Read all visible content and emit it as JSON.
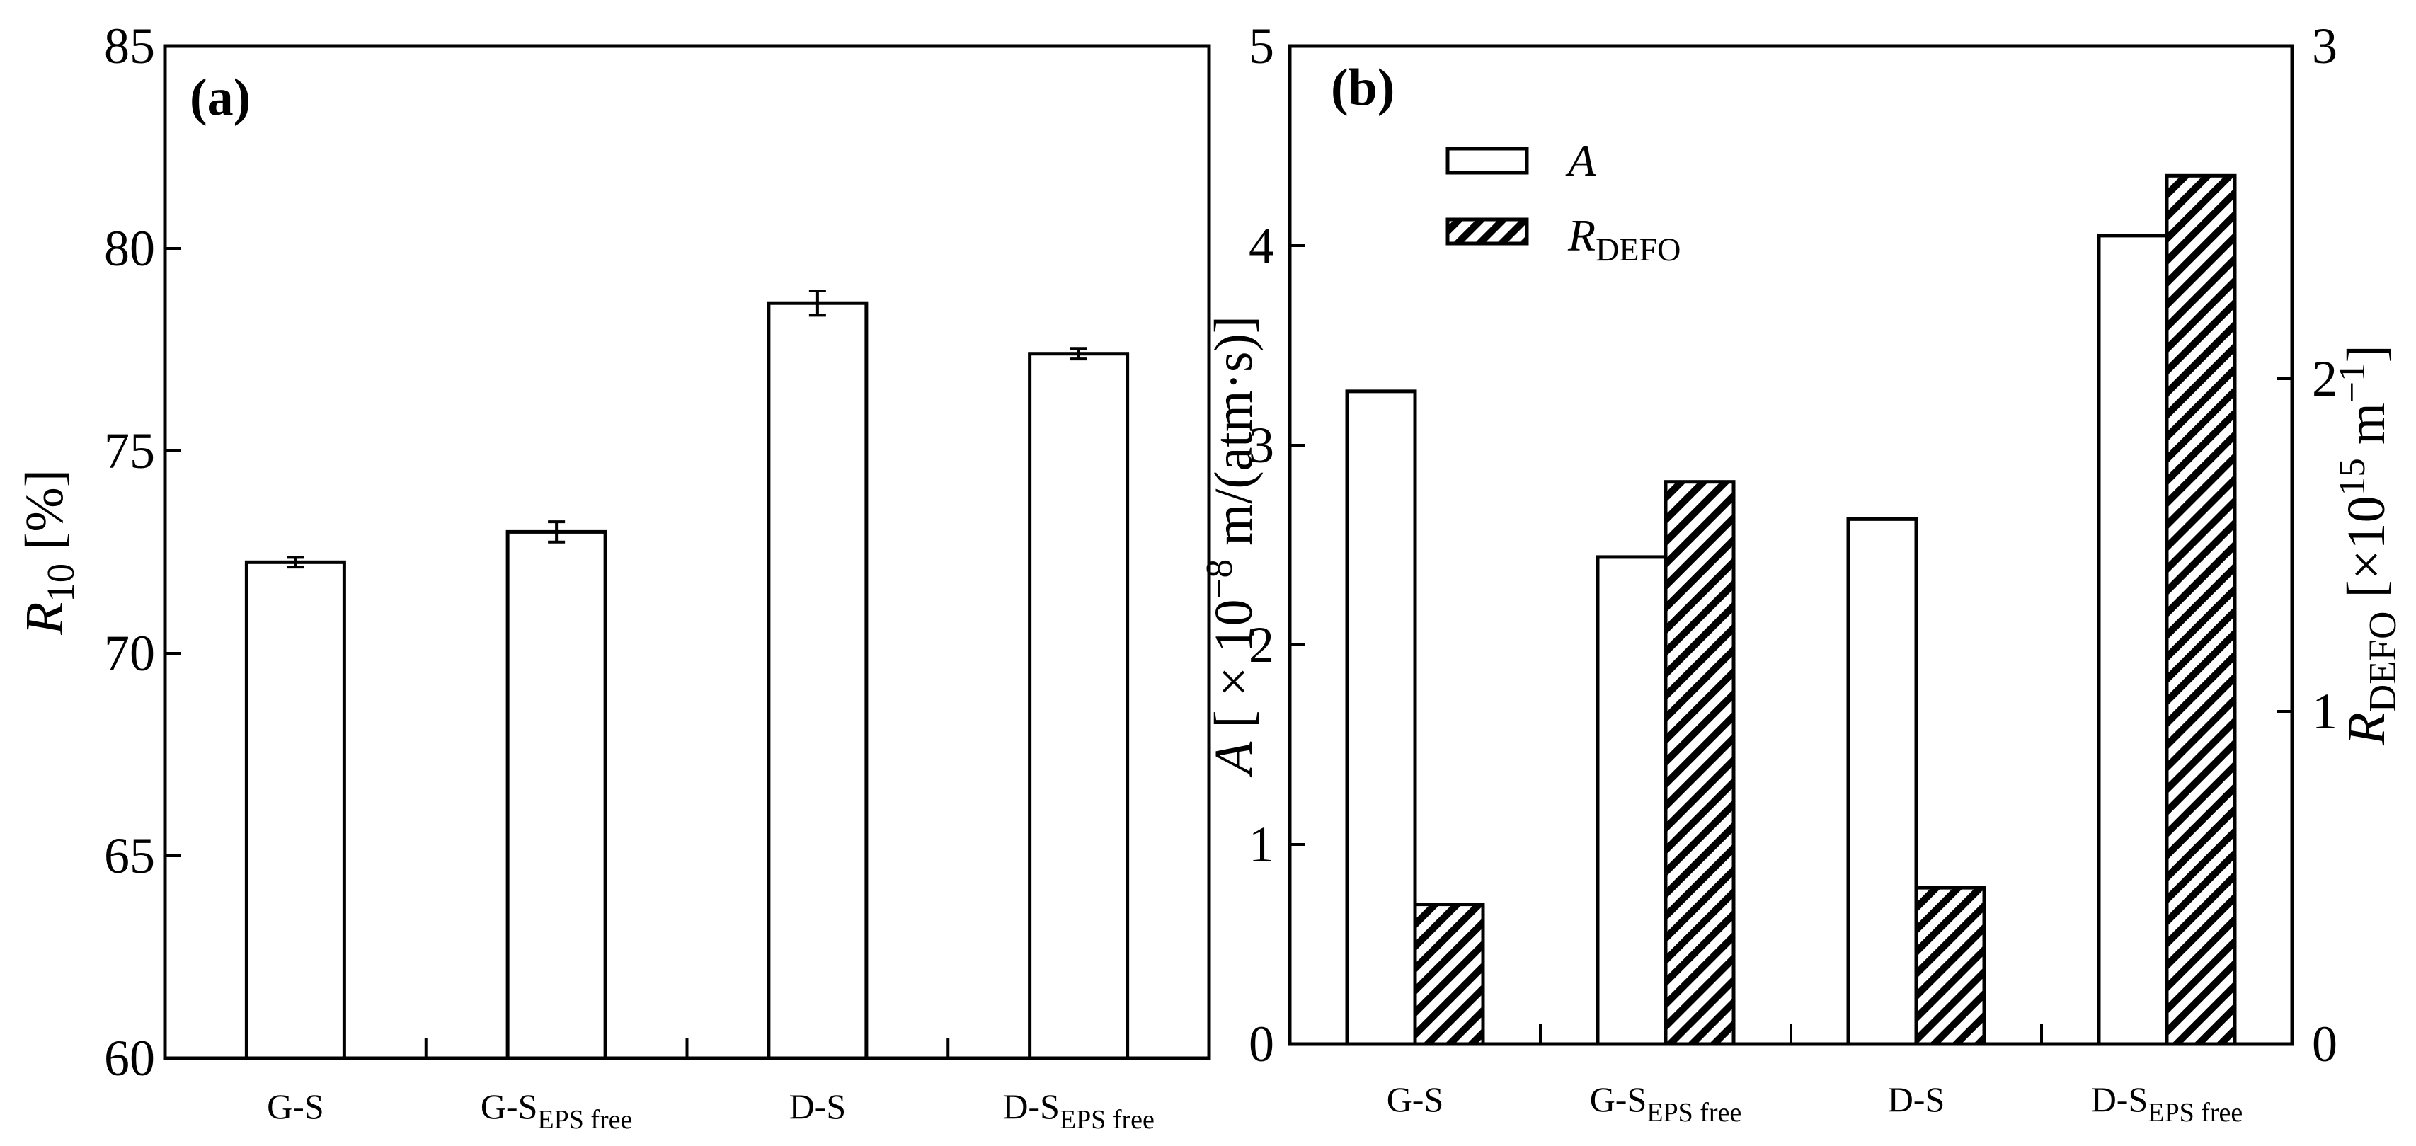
{
  "chart_data": [
    {
      "type": "bar",
      "panel_label": "(a)",
      "categories": [
        {
          "main": "G-S",
          "sub": ""
        },
        {
          "main": "G-S",
          "sub": "EPS free"
        },
        {
          "main": "D-S",
          "sub": ""
        },
        {
          "main": "D-S",
          "sub": "EPS free"
        }
      ],
      "series": [
        {
          "name": "R10",
          "values": [
            72.25,
            73.0,
            78.65,
            77.4
          ],
          "errors": [
            0.12,
            0.25,
            0.3,
            0.13
          ],
          "fill": "none"
        }
      ],
      "ylabel": {
        "main": "R",
        "sub": "10",
        "rest": " [%]"
      },
      "ylim": [
        60,
        85
      ],
      "yticks": [
        60,
        65,
        70,
        75,
        80,
        85
      ]
    },
    {
      "type": "bar",
      "panel_label": "(b)",
      "categories": [
        {
          "main": "G-S",
          "sub": ""
        },
        {
          "main": "G-S",
          "sub": "EPS free"
        },
        {
          "main": "D-S",
          "sub": ""
        },
        {
          "main": "D-S",
          "sub": "EPS free"
        }
      ],
      "series": [
        {
          "name": "A",
          "axis": "left",
          "values": [
            3.27,
            2.44,
            2.63,
            4.05
          ],
          "fill": "none"
        },
        {
          "name": "RDEFO",
          "axis": "right",
          "values": [
            0.42,
            1.69,
            0.47,
            2.61
          ],
          "fill": "hatched"
        }
      ],
      "legend": [
        {
          "main": "A",
          "sub": ""
        },
        {
          "main": "R",
          "sub": "DEFO"
        }
      ],
      "ylabel_left": {
        "main": "A",
        "rest": " [ × 10",
        "sup": "−8",
        "tail": " m/(atm·s)]"
      },
      "ylabel_right": {
        "main": "R",
        "sub": "DEFO",
        "rest": " [×10",
        "sup": "15",
        "mid": " m",
        "sup2": "−1",
        "tail": "]"
      },
      "ylim_left": [
        0,
        5
      ],
      "yticks_left": [
        0,
        1,
        2,
        3,
        4,
        5
      ],
      "ylim_right": [
        0,
        3
      ],
      "yticks_right": [
        0,
        1,
        2,
        3
      ]
    }
  ]
}
